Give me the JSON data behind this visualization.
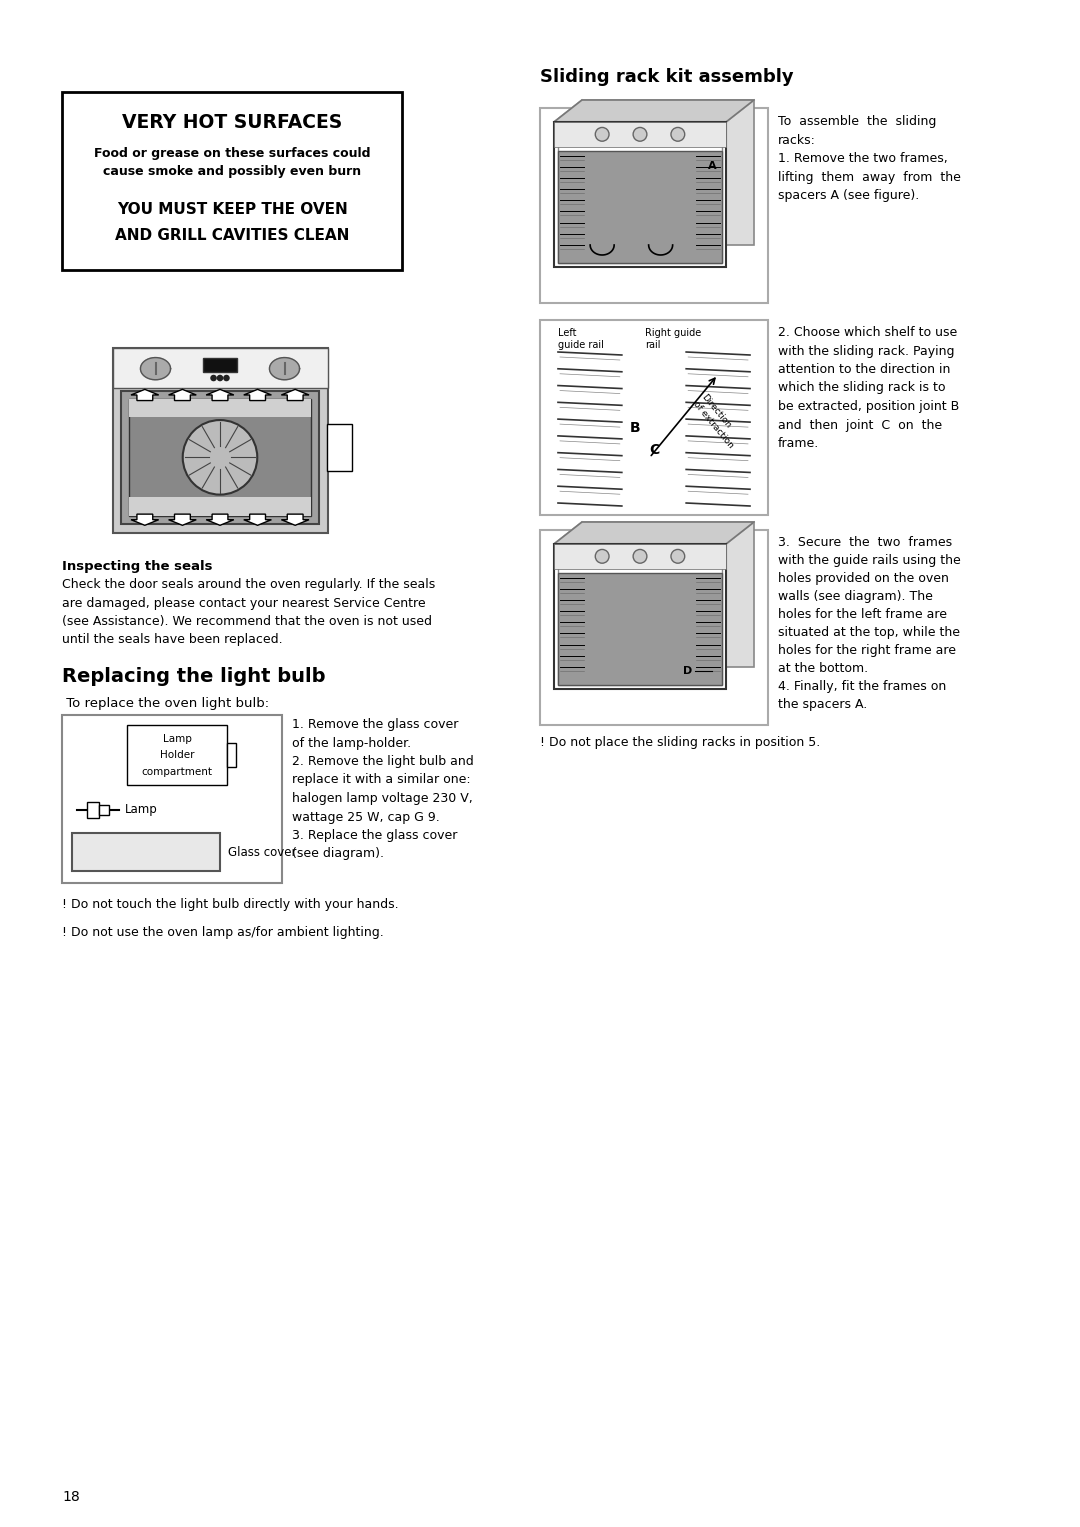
{
  "page_num": "18",
  "bg_color": "#ffffff",
  "text_color": "#000000",
  "warning_box": {
    "title": "VERY HOT SURFACES",
    "line1": "Food or grease on these surfaces could",
    "line2": "cause smoke and possibly even burn",
    "line3": "YOU MUST KEEP THE OVEN",
    "line4": "AND GRILL CAVITIES CLEAN"
  },
  "section1_title": "Sliding rack kit assembly",
  "section1_text1": "To  assemble  the  sliding\nracks:\n1. Remove the two frames,\nlifting  them  away  from  the\nspacers A (see figure).",
  "section2_text": "2. Choose which shelf to use\nwith the sliding rack. Paying\nattention to the direction in\nwhich the sliding rack is to\nbe extracted, position joint B\nand  then  joint  C  on  the\nframe.",
  "section3_text": "3.  Secure  the  two  frames\nwith the guide rails using the\nholes provided on the oven\nwalls (see diagram). The\nholes for the left frame are\nsituated at the top, while the\nholes for the right frame are\nat the bottom.\n4. Finally, fit the frames on\nthe spacers A.",
  "note1": "! Do not place the sliding racks in position 5.",
  "inspecting_title": "Inspecting the seals",
  "inspecting_text": "Check the door seals around the oven regularly. If the seals\nare damaged, please contact your nearest Service Centre\n(see Assistance). We recommend that the oven is not used\nuntil the seals have been replaced.",
  "replacing_title": "Replacing the light bulb",
  "replacing_sub": " To replace the oven light bulb:",
  "replacing_step1": "1. Remove the glass cover\nof the lamp-holder.\n2. Remove the light bulb and\nreplace it with a similar one:\nhalogen lamp voltage 230 V,\nwattage 25 W, cap G 9.\n3. Replace the glass cover\n(see diagram).",
  "note2": "! Do not touch the light bulb directly with your hands.",
  "note3": "! Do not use the oven lamp as/for ambient lighting."
}
